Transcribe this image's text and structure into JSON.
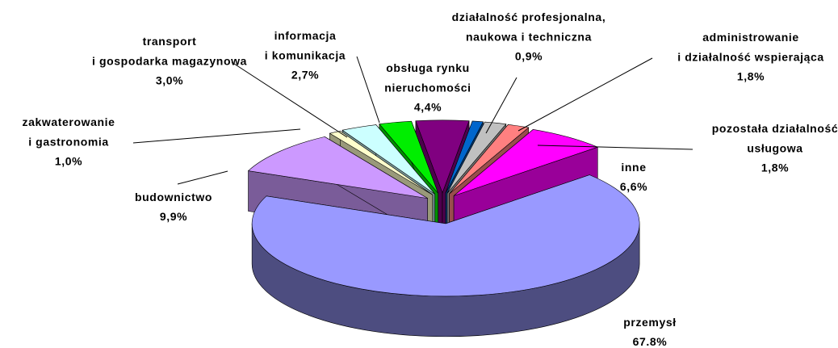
{
  "chart_data": {
    "type": "pie3d",
    "categories": [
      "obsługa rynku\nnieruchomości",
      "działalność profesjonalna,\nnaukowa i techniczna",
      "administrowanie\ni działalność wspierająca",
      "pozostała działalność\nusługowa",
      "inne",
      "przemysł",
      "budownictwo",
      "zakwaterowanie\ni gastronomia",
      "transport\ni gospodarka magazynowa",
      "informacja\ni komunikacja"
    ],
    "values": [
      4.4,
      0.9,
      1.8,
      1.8,
      6.6,
      67.8,
      9.9,
      1.0,
      3.0,
      2.7
    ],
    "value_labels": [
      "4,4%",
      "0,9%",
      "1,8%",
      "1,8%",
      "6,6%",
      "67.8%",
      "9,9%",
      "1,0%",
      "3,0%",
      "2,7%"
    ],
    "colors": [
      "#800080",
      "#0066cc",
      "#c0c0c0",
      "#ff8080",
      "#ff00ff",
      "#9999ff",
      "#cc99ff",
      "#ffffcc",
      "#ccffff",
      "#00ee00"
    ]
  }
}
